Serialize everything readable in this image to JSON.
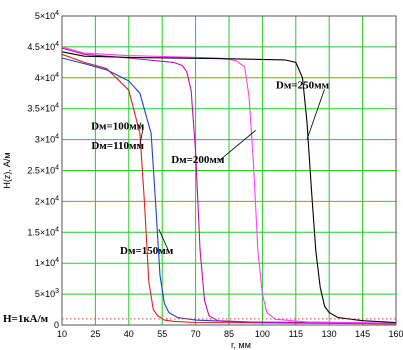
{
  "chart_data": {
    "type": "line",
    "xlabel": "r, мм",
    "ylabel": "H(z), A/м",
    "xlim": [
      10,
      160
    ],
    "ylim": [
      0,
      50000
    ],
    "x_ticks": [
      "10",
      "25",
      "40",
      "55",
      "70",
      "85",
      "100",
      "115",
      "130",
      "145",
      "160"
    ],
    "y_ticks": [
      {
        "value": 0,
        "text": "0"
      },
      {
        "value": 5000,
        "base": "5×10",
        "exp": "3"
      },
      {
        "value": 10000,
        "base": "1×10",
        "exp": "4"
      },
      {
        "value": 15000,
        "base": "1.5×10",
        "exp": "4"
      },
      {
        "value": 20000,
        "base": "2×10",
        "exp": "4"
      },
      {
        "value": 25000,
        "base": "2.5×10",
        "exp": "4"
      },
      {
        "value": 30000,
        "base": "3×10",
        "exp": "4"
      },
      {
        "value": 35000,
        "base": "3.5×10",
        "exp": "4"
      },
      {
        "value": 40000,
        "base": "4×10",
        "exp": "4"
      },
      {
        "value": 45000,
        "base": "4.5×10",
        "exp": "4"
      },
      {
        "value": 50000,
        "base": "5×10",
        "exp": "4"
      }
    ],
    "grid": true,
    "grid_color": "#22cc22",
    "series": [
      {
        "color": "#e02020",
        "x": [
          10,
          20,
          30,
          40,
          45,
          47,
          49,
          51,
          53,
          56,
          60,
          70,
          160
        ],
        "y": [
          43800,
          42500,
          41500,
          38000,
          31000,
          20000,
          7000,
          2500,
          1500,
          800,
          600,
          400,
          200
        ]
      },
      {
        "color": "#1f3fd6",
        "x": [
          10,
          20,
          30,
          40,
          45,
          50,
          52,
          54,
          56,
          58,
          62,
          70,
          90,
          160
        ],
        "y": [
          43200,
          42300,
          41300,
          39500,
          37500,
          31000,
          20000,
          8000,
          3500,
          2000,
          1200,
          800,
          500,
          300
        ]
      },
      {
        "color": "#c010a8",
        "x": [
          10,
          20,
          40,
          60,
          64,
          66,
          68,
          70,
          72,
          74,
          76,
          80,
          100,
          160
        ],
        "y": [
          44800,
          43800,
          43200,
          42500,
          42000,
          41000,
          38000,
          28000,
          12000,
          4000,
          1500,
          700,
          400,
          300
        ]
      },
      {
        "color": "#ff40ff",
        "x": [
          10,
          20,
          40,
          80,
          88,
          92,
          94,
          96,
          98,
          100,
          102,
          106,
          120,
          160
        ],
        "y": [
          45000,
          44000,
          43600,
          43200,
          42800,
          41800,
          37000,
          26000,
          12000,
          5000,
          2000,
          900,
          500,
          300
        ]
      },
      {
        "color": "#000000",
        "x": [
          10,
          20,
          40,
          80,
          110,
          115,
          118,
          120,
          122,
          124,
          126,
          128,
          130,
          134,
          145,
          160
        ],
        "y": [
          44200,
          43500,
          43300,
          43100,
          42900,
          42500,
          40000,
          33000,
          22000,
          12000,
          6000,
          3000,
          2000,
          1200,
          700,
          400
        ]
      }
    ],
    "reference_line": {
      "value": 1000,
      "color": "#ff3030",
      "style": "dotted",
      "label": "H=1кA/м"
    },
    "annotations": [
      {
        "text": "Dм=100мм",
        "x": 35,
        "y": 31600,
        "ax": 45.5,
        "ay": 32800
      },
      {
        "text": "Dм=110мм",
        "x": 35,
        "y": 28500,
        "ax": 46.5,
        "ay": 32000
      },
      {
        "text": "Dм=150мм",
        "x": 48,
        "y": 11500,
        "ax": 53.5,
        "ay": 15500
      },
      {
        "text": "Dм=200мм",
        "x": 71,
        "y": 26200,
        "ax": 97,
        "ay": 31500
      },
      {
        "text": "Dм=250мм",
        "x": 118,
        "y": 38300,
        "ax": 120,
        "ay": 30000
      }
    ]
  }
}
